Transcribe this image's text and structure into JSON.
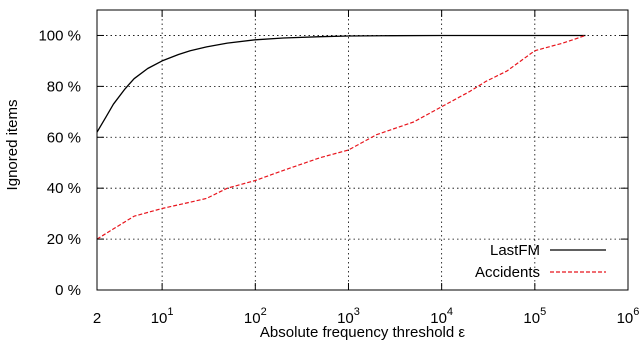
{
  "chart_data": {
    "type": "line",
    "xlabel": "Absolute frequency threshold ε",
    "ylabel": "Ignored items",
    "xscale": "log",
    "xlim": [
      2,
      1000000
    ],
    "ylim": [
      0,
      110
    ],
    "x_ticks": [
      {
        "value": 2,
        "base": "2",
        "exp": ""
      },
      {
        "value": 10,
        "base": "10",
        "exp": "1"
      },
      {
        "value": 100,
        "base": "10",
        "exp": "2"
      },
      {
        "value": 1000,
        "base": "10",
        "exp": "3"
      },
      {
        "value": 10000,
        "base": "10",
        "exp": "4"
      },
      {
        "value": 100000,
        "base": "10",
        "exp": "5"
      },
      {
        "value": 1000000,
        "base": "10",
        "exp": "6"
      }
    ],
    "y_ticks": [
      {
        "value": 0,
        "label": "0 %"
      },
      {
        "value": 20,
        "label": "20 %"
      },
      {
        "value": 40,
        "label": "40 %"
      },
      {
        "value": 60,
        "label": "60 %"
      },
      {
        "value": 80,
        "label": "80 %"
      },
      {
        "value": 100,
        "label": "100 %"
      }
    ],
    "grid": true,
    "legend_position": "bottom-right",
    "series": [
      {
        "name": "LastFM",
        "color": "#000000",
        "dash": "solid",
        "x": [
          2,
          2.5,
          3,
          4,
          5,
          7,
          10,
          15,
          20,
          30,
          50,
          100,
          200,
          500,
          1000,
          3000,
          10000,
          100000,
          350000
        ],
        "y": [
          62,
          68,
          73,
          79,
          83,
          87,
          90,
          92.5,
          94,
          95.5,
          97,
          98.3,
          99,
          99.5,
          99.8,
          99.9,
          100,
          100,
          100
        ]
      },
      {
        "name": "Accidents",
        "color": "#e8141c",
        "dash": "dashed",
        "x": [
          2,
          3,
          5,
          10,
          20,
          30,
          50,
          100,
          200,
          500,
          1000,
          2000,
          5000,
          10000,
          20000,
          30000,
          50000,
          100000,
          200000,
          350000
        ],
        "y": [
          20,
          24,
          29,
          32,
          34.5,
          36,
          40,
          43,
          47,
          52,
          55,
          61,
          66,
          72,
          78,
          82,
          86,
          94,
          97,
          100
        ]
      }
    ]
  }
}
